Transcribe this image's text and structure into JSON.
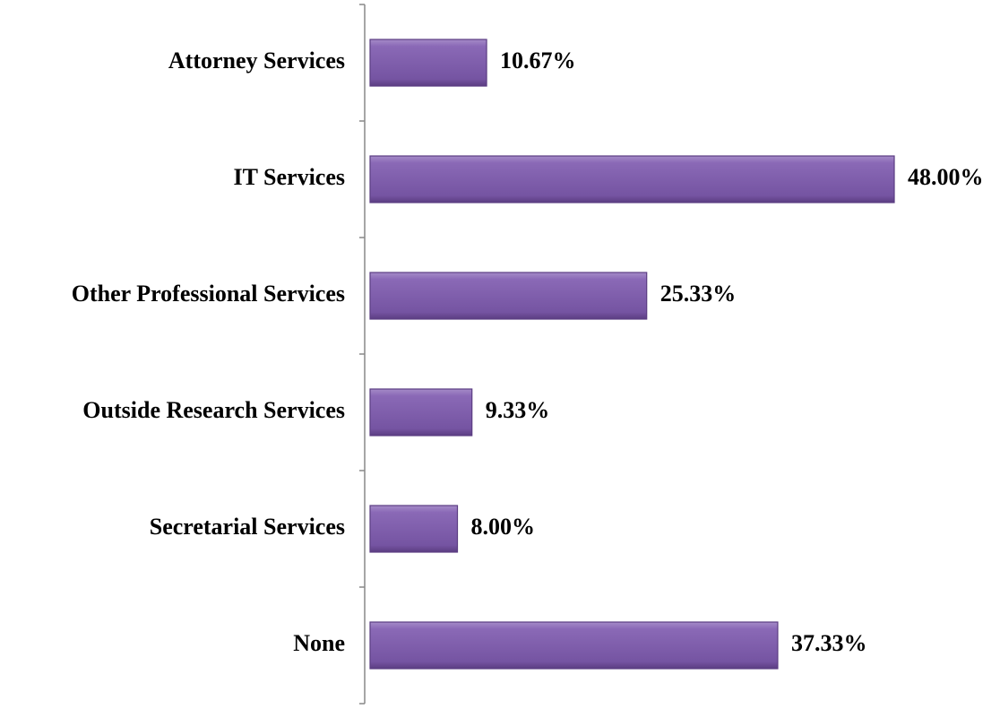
{
  "chart_data": {
    "type": "bar",
    "orientation": "horizontal",
    "categories": [
      "Attorney Services",
      "IT Services",
      "Other Professional Services",
      "Outside Research Services",
      "Secretarial Services",
      "None"
    ],
    "values": [
      10.67,
      48.0,
      25.33,
      9.33,
      8.0,
      37.33
    ],
    "value_labels": [
      "10.67%",
      "48.00%",
      "25.33%",
      "9.33%",
      "8.00%",
      "37.33%"
    ],
    "color": "#7b5aa6"
  }
}
